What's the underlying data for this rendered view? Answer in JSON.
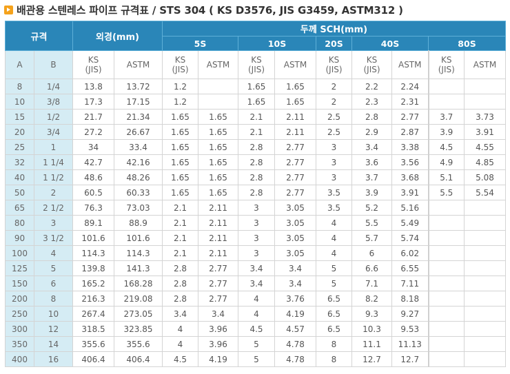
{
  "title": {
    "icon": "arrow-right-icon",
    "text": "배관용 스텐레스 파이프 규격표 / STS 304 ( KS D3576, JIS G3459, ASTM312 )"
  },
  "colors": {
    "header_bg": "#2a86b8",
    "size_col_bg": "#d5ecf4",
    "icon": "#f5a21b"
  },
  "table": {
    "headers": {
      "spec": "규격",
      "od": "외경(mm)",
      "thickness": "두께 SCH(mm)",
      "schedules": [
        "5S",
        "10S",
        "20S",
        "40S",
        "80S"
      ],
      "sub": {
        "a": "A",
        "b": "B",
        "ks_jis": "KS (JIS)",
        "astm": "ASTM"
      }
    },
    "columns": [
      "A",
      "B",
      "OD KS(JIS)",
      "OD ASTM",
      "5S KS(JIS)",
      "5S ASTM",
      "10S KS(JIS)",
      "10S ASTM",
      "20S KS(JIS)",
      "40S KS(JIS)",
      "40S ASTM",
      "80S KS(JIS)",
      "80S ASTM"
    ],
    "rows": [
      [
        "8",
        "1/4",
        "13.8",
        "13.72",
        "1.2",
        "",
        "1.65",
        "1.65",
        "2",
        "2.2",
        "2.24",
        "",
        ""
      ],
      [
        "10",
        "3/8",
        "17.3",
        "17.15",
        "1.2",
        "",
        "1.65",
        "1.65",
        "2",
        "2.3",
        "2.31",
        "",
        ""
      ],
      [
        "15",
        "1/2",
        "21.7",
        "21.34",
        "1.65",
        "1.65",
        "2.1",
        "2.11",
        "2.5",
        "2.8",
        "2.77",
        "3.7",
        "3.73"
      ],
      [
        "20",
        "3/4",
        "27.2",
        "26.67",
        "1.65",
        "1.65",
        "2.1",
        "2.11",
        "2.5",
        "2.9",
        "2.87",
        "3.9",
        "3.91"
      ],
      [
        "25",
        "1",
        "34",
        "33.4",
        "1.65",
        "1.65",
        "2.8",
        "2.77",
        "3",
        "3.4",
        "3.38",
        "4.5",
        "4.55"
      ],
      [
        "32",
        "1 1/4",
        "42.7",
        "42.16",
        "1.65",
        "1.65",
        "2.8",
        "2.77",
        "3",
        "3.6",
        "3.56",
        "4.9",
        "4.85"
      ],
      [
        "40",
        "1 1/2",
        "48.6",
        "48.26",
        "1.65",
        "1.65",
        "2.8",
        "2.77",
        "3",
        "3.7",
        "3.68",
        "5.1",
        "5.08"
      ],
      [
        "50",
        "2",
        "60.5",
        "60.33",
        "1.65",
        "1.65",
        "2.8",
        "2.77",
        "3.5",
        "3.9",
        "3.91",
        "5.5",
        "5.54"
      ],
      [
        "65",
        "2 1/2",
        "76.3",
        "73.03",
        "2.1",
        "2.11",
        "3",
        "3.05",
        "3.5",
        "5.2",
        "5.16",
        "",
        ""
      ],
      [
        "80",
        "3",
        "89.1",
        "88.9",
        "2.1",
        "2.11",
        "3",
        "3.05",
        "4",
        "5.5",
        "5.49",
        "",
        ""
      ],
      [
        "90",
        "3 1/2",
        "101.6",
        "101.6",
        "2.1",
        "2.11",
        "3",
        "3.05",
        "4",
        "5.7",
        "5.74",
        "",
        ""
      ],
      [
        "100",
        "4",
        "114.3",
        "114.3",
        "2.1",
        "2.11",
        "3",
        "3.05",
        "4",
        "6",
        "6.02",
        "",
        ""
      ],
      [
        "125",
        "5",
        "139.8",
        "141.3",
        "2.8",
        "2.77",
        "3.4",
        "3.4",
        "5",
        "6.6",
        "6.55",
        "",
        ""
      ],
      [
        "150",
        "6",
        "165.2",
        "168.28",
        "2.8",
        "2.77",
        "3.4",
        "3.4",
        "5",
        "7.1",
        "7.11",
        "",
        ""
      ],
      [
        "200",
        "8",
        "216.3",
        "219.08",
        "2.8",
        "2.77",
        "4",
        "3.76",
        "6.5",
        "8.2",
        "8.18",
        "",
        ""
      ],
      [
        "250",
        "10",
        "267.4",
        "273.05",
        "3.4",
        "3.4",
        "4",
        "4.19",
        "6.5",
        "9.3",
        "9.27",
        "",
        ""
      ],
      [
        "300",
        "12",
        "318.5",
        "323.85",
        "4",
        "3.96",
        "4.5",
        "4.57",
        "6.5",
        "10.3",
        "9.53",
        "",
        ""
      ],
      [
        "350",
        "14",
        "355.6",
        "355.6",
        "4",
        "3.96",
        "5",
        "4.78",
        "8",
        "11.1",
        "11.13",
        "",
        ""
      ],
      [
        "400",
        "16",
        "406.4",
        "406.4",
        "4.5",
        "4.19",
        "5",
        "4.78",
        "8",
        "12.7",
        "12.7",
        "",
        ""
      ]
    ]
  }
}
